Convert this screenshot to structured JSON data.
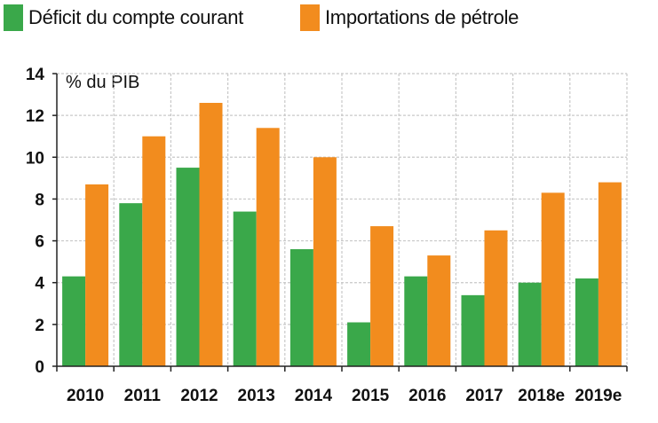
{
  "chart_data": {
    "type": "bar",
    "title": "",
    "ylabel": "% du PIB",
    "xlabel": "",
    "ylim": [
      0,
      14
    ],
    "yticks": [
      0,
      2,
      4,
      6,
      8,
      10,
      12,
      14
    ],
    "grid": true,
    "legend_position": "top-left",
    "categories": [
      "2010",
      "2011",
      "2012",
      "2013",
      "2014",
      "2015",
      "2016",
      "2017",
      "2018e",
      "2019e"
    ],
    "series": [
      {
        "name": "Déficit du compte courant",
        "color": "#3aa84a",
        "values": [
          4.3,
          7.8,
          9.5,
          7.4,
          5.6,
          2.1,
          4.3,
          3.4,
          4.0,
          4.2
        ]
      },
      {
        "name": "Importations de pétrole",
        "color": "#f28c1e",
        "values": [
          8.7,
          11.0,
          12.6,
          11.4,
          10.0,
          6.7,
          5.3,
          6.5,
          8.3,
          8.8
        ]
      }
    ]
  }
}
